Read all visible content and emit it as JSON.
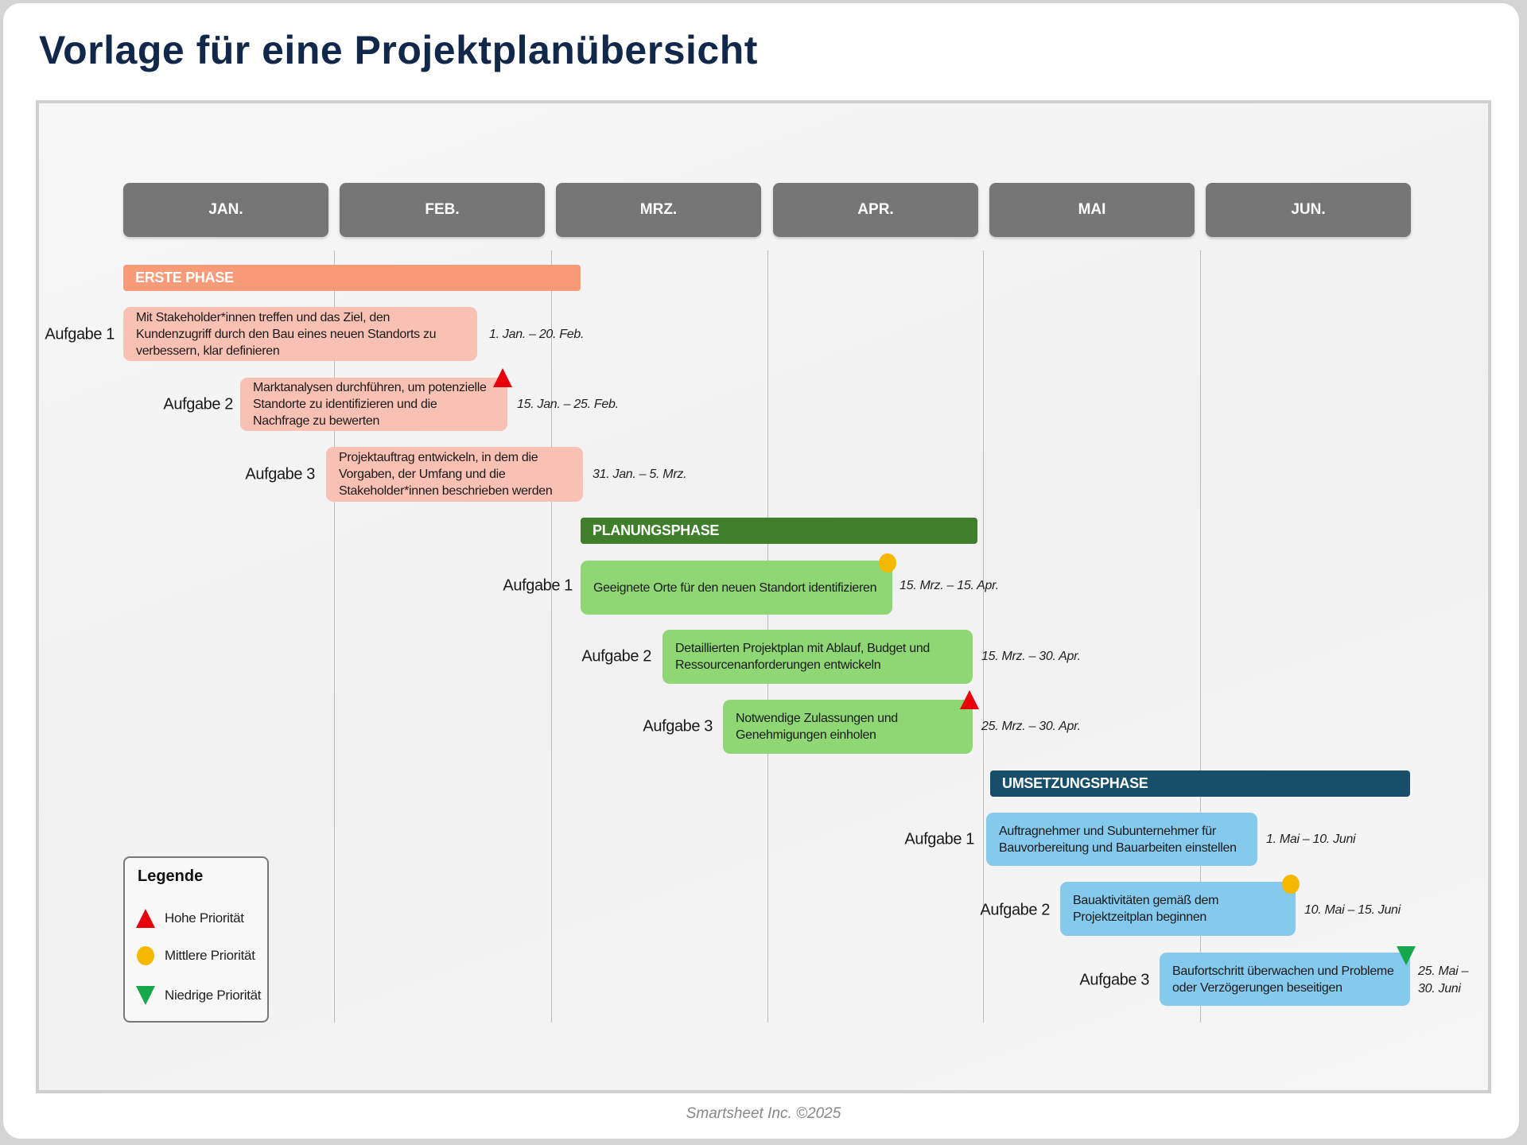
{
  "title": "Vorlage für eine Projektplanübersicht",
  "months": [
    "JAN.",
    "FEB.",
    "MRZ.",
    "APR.",
    "MAI",
    "JUN."
  ],
  "phases": [
    {
      "name": "ERSTE PHASE",
      "color": "#f99b78",
      "task_color": "#f8c1b4",
      "tasks": [
        {
          "label": "Aufgabe 1",
          "text": "Mit Stakeholder*innen treffen und das Ziel, den Kundenzugriff durch den Bau eines neuen Standorts zu verbessern, klar definieren",
          "dates": "1. Jan. – 20. Feb.",
          "priority": null
        },
        {
          "label": "Aufgabe 2",
          "text": "Marktanalysen durchführen, um potenzielle Standorte zu identifizieren und die Nachfrage zu bewerten",
          "dates": "15. Jan. – 25. Feb.",
          "priority": "high"
        },
        {
          "label": "Aufgabe 3",
          "text": "Projektauftrag entwickeln, in dem die Vorgaben, der Umfang und die Stakeholder*innen beschrieben werden",
          "dates": "31. Jan. – 5. Mrz.",
          "priority": null
        }
      ]
    },
    {
      "name": "PLANUNGSPHASE",
      "color": "#3f7e2a",
      "task_color": "#8fd774",
      "tasks": [
        {
          "label": "Aufgabe 1",
          "text": "Geeignete Orte für den neuen Standort identifizieren",
          "dates": "15. Mrz. – 15. Apr.",
          "priority": "medium"
        },
        {
          "label": "Aufgabe 2",
          "text": "Detaillierten Projektplan mit Ablauf, Budget und Ressourcenanforderungen entwickeln",
          "dates": "15. Mrz. – 30. Apr.",
          "priority": null
        },
        {
          "label": "Aufgabe 3",
          "text": "Notwendige Zulassungen und Genehmigungen einholen",
          "dates": "25. Mrz. – 30. Apr.",
          "priority": "high"
        }
      ]
    },
    {
      "name": "UMSETZUNGSPHASE",
      "color": "#174e6a",
      "task_color": "#85c9ec",
      "tasks": [
        {
          "label": "Aufgabe 1",
          "text": "Auftragnehmer und Subunternehmer für Bauvorbereitung und Bauarbeiten einstellen",
          "dates": "1. Mai – 10. Juni",
          "priority": null
        },
        {
          "label": "Aufgabe 2",
          "text": "Bauaktivitäten gemäß dem Projektzeitplan beginnen",
          "dates": "10. Mai – 15. Juni",
          "priority": "medium"
        },
        {
          "label": "Aufgabe 3",
          "text": "Baufortschritt überwachen und Probleme oder Verzögerungen beseitigen",
          "dates_line1": "25. Mai –",
          "dates_line2": "30. Juni",
          "priority": "low"
        }
      ]
    }
  ],
  "legend": {
    "title": "Legende",
    "items": [
      {
        "icon": "red-triangle-up",
        "label": "Hohe Priorität",
        "color": "#e8000b"
      },
      {
        "icon": "yellow-circle",
        "label": "Mittlere Priorität",
        "color": "#f5b800"
      },
      {
        "icon": "green-triangle-down",
        "label": "Niedrige Priorität",
        "color": "#14a84a"
      }
    ]
  },
  "footer": "Smartsheet Inc. ©2025"
}
